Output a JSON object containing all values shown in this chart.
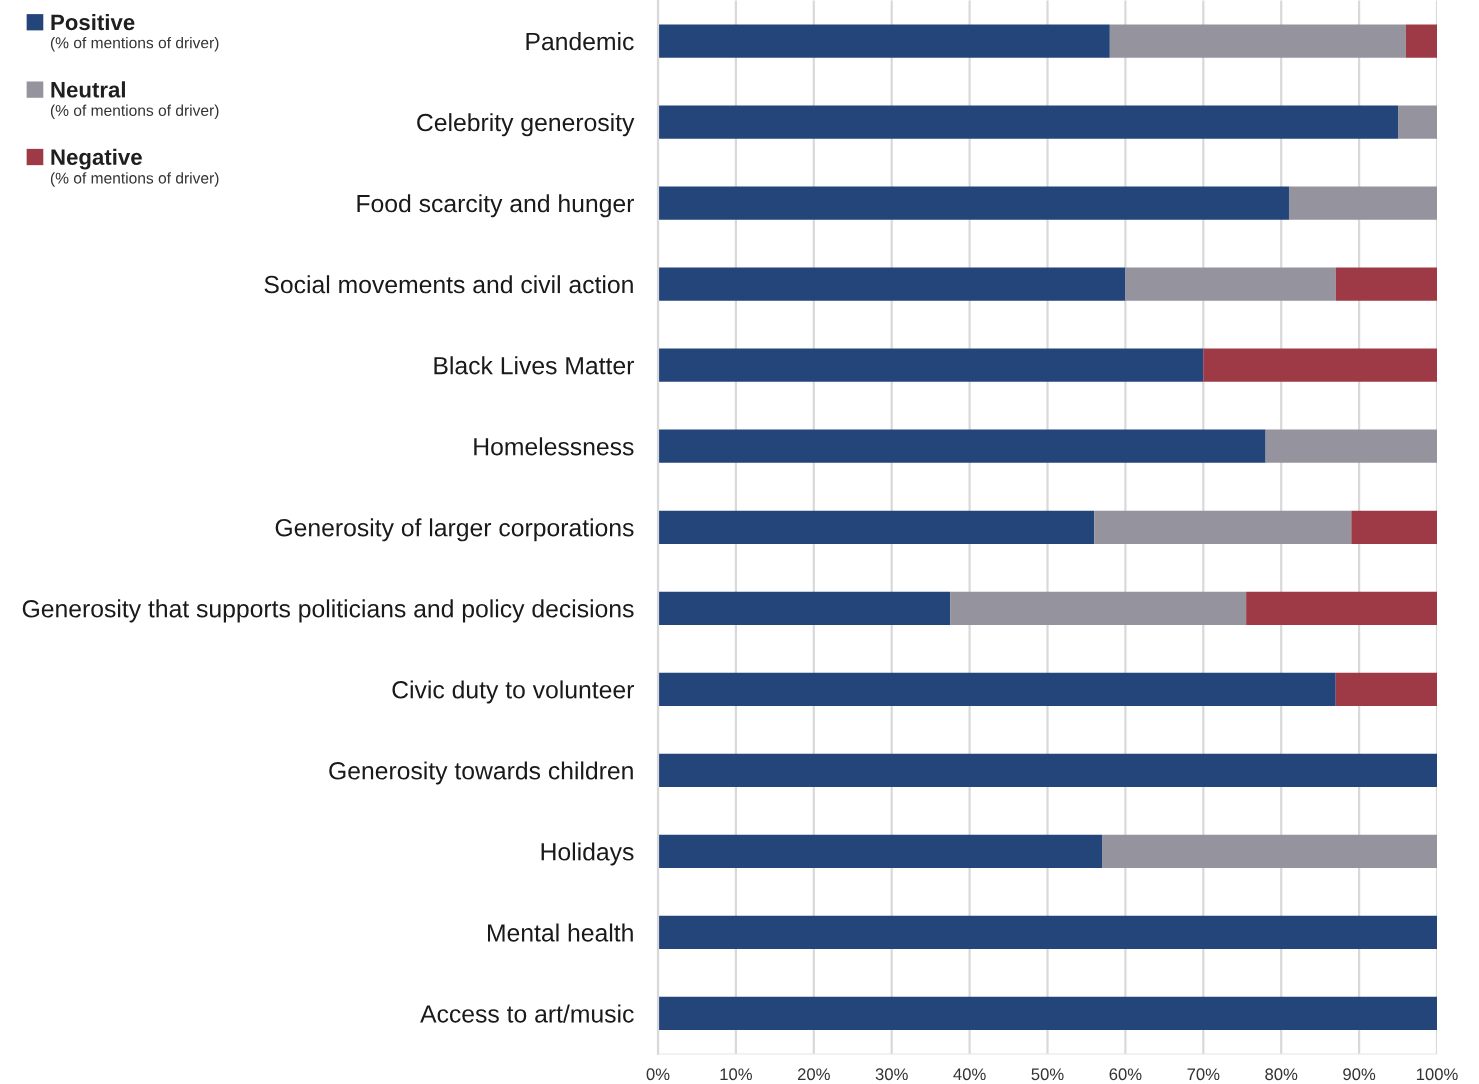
{
  "chart_data": {
    "type": "bar",
    "orientation": "horizontal",
    "stacked": true,
    "categories": [
      "Pandemic",
      "Celebrity generosity",
      "Food scarcity and hunger",
      "Social movements and civil action",
      "Black Lives Matter",
      "Homelessness",
      "Generosity of larger corporations",
      "Generosity that supports politicians and policy decisions",
      "Civic duty to volunteer",
      "Generosity towards children",
      "Holidays",
      "Mental health",
      "Access to art/music"
    ],
    "series": [
      {
        "name": "Positive",
        "color": "#23457a",
        "values": [
          58,
          95,
          81,
          60,
          70,
          78,
          56,
          37.5,
          87,
          100,
          57,
          100,
          100
        ]
      },
      {
        "name": "Neutral",
        "color": "#94939e",
        "values": [
          38,
          5,
          19,
          27,
          null,
          22,
          33,
          38,
          null,
          null,
          43,
          null,
          null
        ]
      },
      {
        "name": "Negative",
        "color": "#9e3a45",
        "values": [
          4,
          null,
          null,
          13,
          30,
          null,
          11,
          24.5,
          13,
          null,
          null,
          null,
          null
        ]
      }
    ],
    "annotations": [
      "(% of mentions of driver)",
      "(% of mentions of driver)",
      "(% of mentions of driver)"
    ],
    "xlim": [
      0,
      100
    ],
    "xticks": [
      {
        "value": 0,
        "label": "0%"
      },
      {
        "value": 10,
        "label": "10%"
      },
      {
        "value": 20,
        "label": "20%"
      },
      {
        "value": 30,
        "label": "30%"
      },
      {
        "value": 40,
        "label": "40%"
      },
      {
        "value": 50,
        "label": "50%"
      },
      {
        "value": 60,
        "label": "60%"
      },
      {
        "value": 70,
        "label": "70%"
      },
      {
        "value": 80,
        "label": "80%"
      },
      {
        "value": 90,
        "label": "90%"
      },
      {
        "value": 100,
        "label": "100%"
      }
    ],
    "grid": "x",
    "legend": "top left"
  }
}
